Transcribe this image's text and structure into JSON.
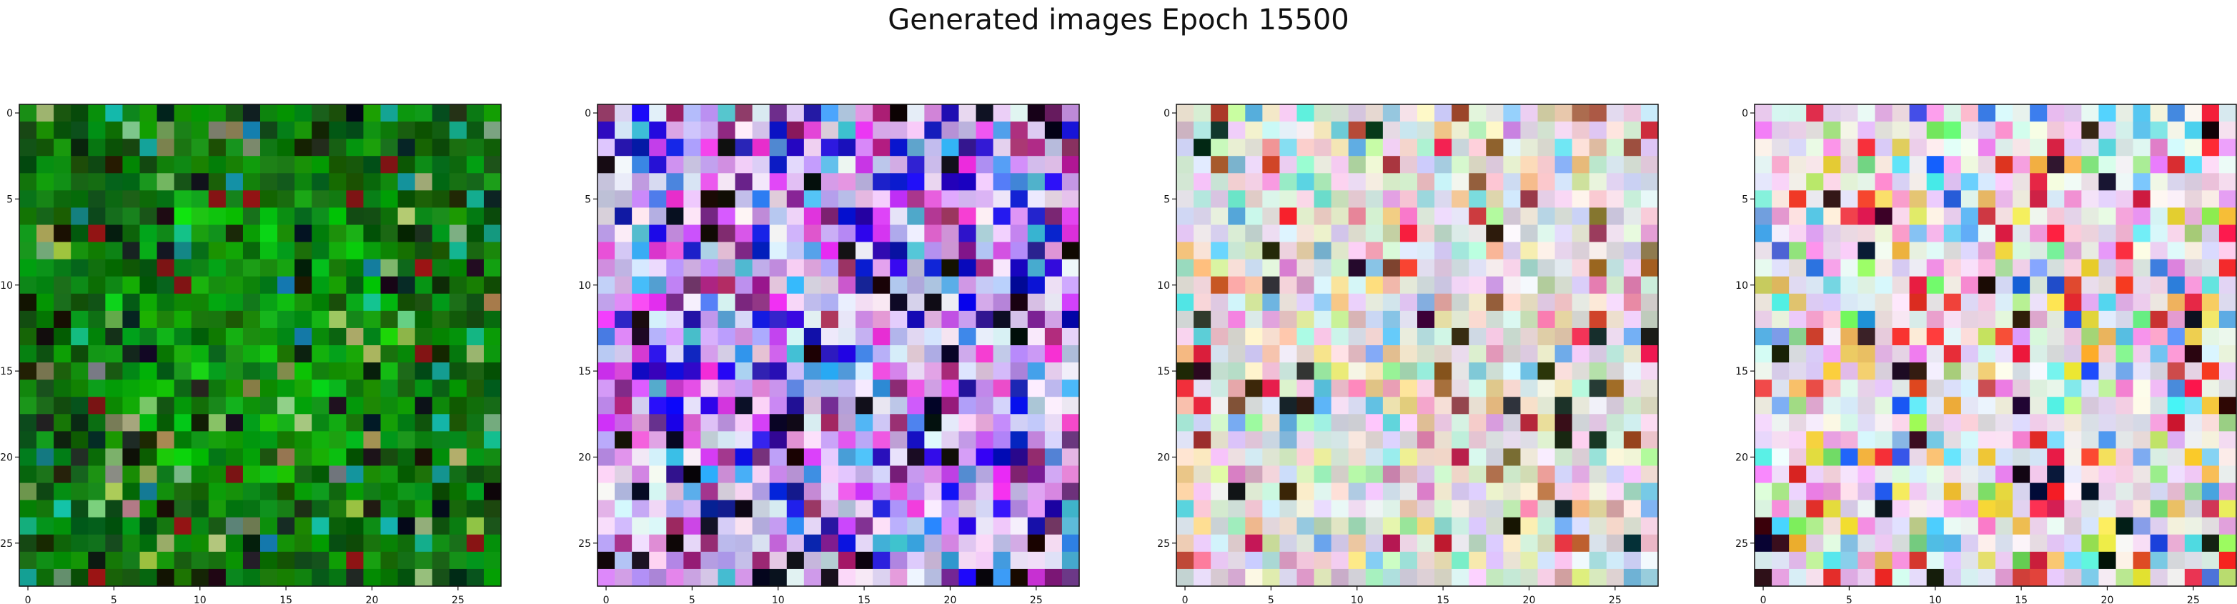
{
  "title": "Generated images Epoch 15500",
  "chart_data": [
    {
      "type": "heatmap",
      "palette": "green",
      "xlim": [
        -0.5,
        27.5
      ],
      "ylim": [
        27.5,
        -0.5
      ],
      "xticks": [
        0,
        5,
        10,
        15,
        20,
        25
      ],
      "yticks": [
        0,
        5,
        10,
        15,
        20,
        25
      ],
      "xtick_labels": [
        "0",
        "5",
        "10",
        "15",
        "20",
        "25"
      ],
      "ytick_labels": [
        "0",
        "5",
        "10",
        "15",
        "20",
        "25"
      ],
      "grid": "28x28 RGB pixels"
    },
    {
      "type": "heatmap",
      "palette": "blue-violet-pastel",
      "xlim": [
        -0.5,
        27.5
      ],
      "ylim": [
        27.5,
        -0.5
      ],
      "xticks": [
        0,
        5,
        10,
        15,
        20,
        25
      ],
      "yticks": [
        0,
        5,
        10,
        15,
        20,
        25
      ],
      "xtick_labels": [
        "0",
        "5",
        "10",
        "15",
        "20",
        "25"
      ],
      "ytick_labels": [
        "0",
        "5",
        "10",
        "15",
        "20",
        "25"
      ],
      "grid": "28x28 RGB pixels"
    },
    {
      "type": "heatmap",
      "palette": "pastel-mixed",
      "xlim": [
        -0.5,
        27.5
      ],
      "ylim": [
        27.5,
        -0.5
      ],
      "xticks": [
        0,
        5,
        10,
        15,
        20,
        25
      ],
      "yticks": [
        0,
        5,
        10,
        15,
        20,
        25
      ],
      "xtick_labels": [
        "0",
        "5",
        "10",
        "15",
        "20",
        "25"
      ],
      "ytick_labels": [
        "0",
        "5",
        "10",
        "15",
        "20",
        "25"
      ],
      "grid": "28x28 RGB pixels"
    },
    {
      "type": "heatmap",
      "palette": "pastel-bright",
      "xlim": [
        -0.5,
        27.5
      ],
      "ylim": [
        27.5,
        -0.5
      ],
      "xticks": [
        0,
        5,
        10,
        15,
        20,
        25
      ],
      "yticks": [
        0,
        5,
        10,
        15,
        20,
        25
      ],
      "xtick_labels": [
        "0",
        "5",
        "10",
        "15",
        "20",
        "25"
      ],
      "ytick_labels": [
        "0",
        "5",
        "10",
        "15",
        "20",
        "25"
      ],
      "grid": "28x28 RGB pixels"
    }
  ]
}
